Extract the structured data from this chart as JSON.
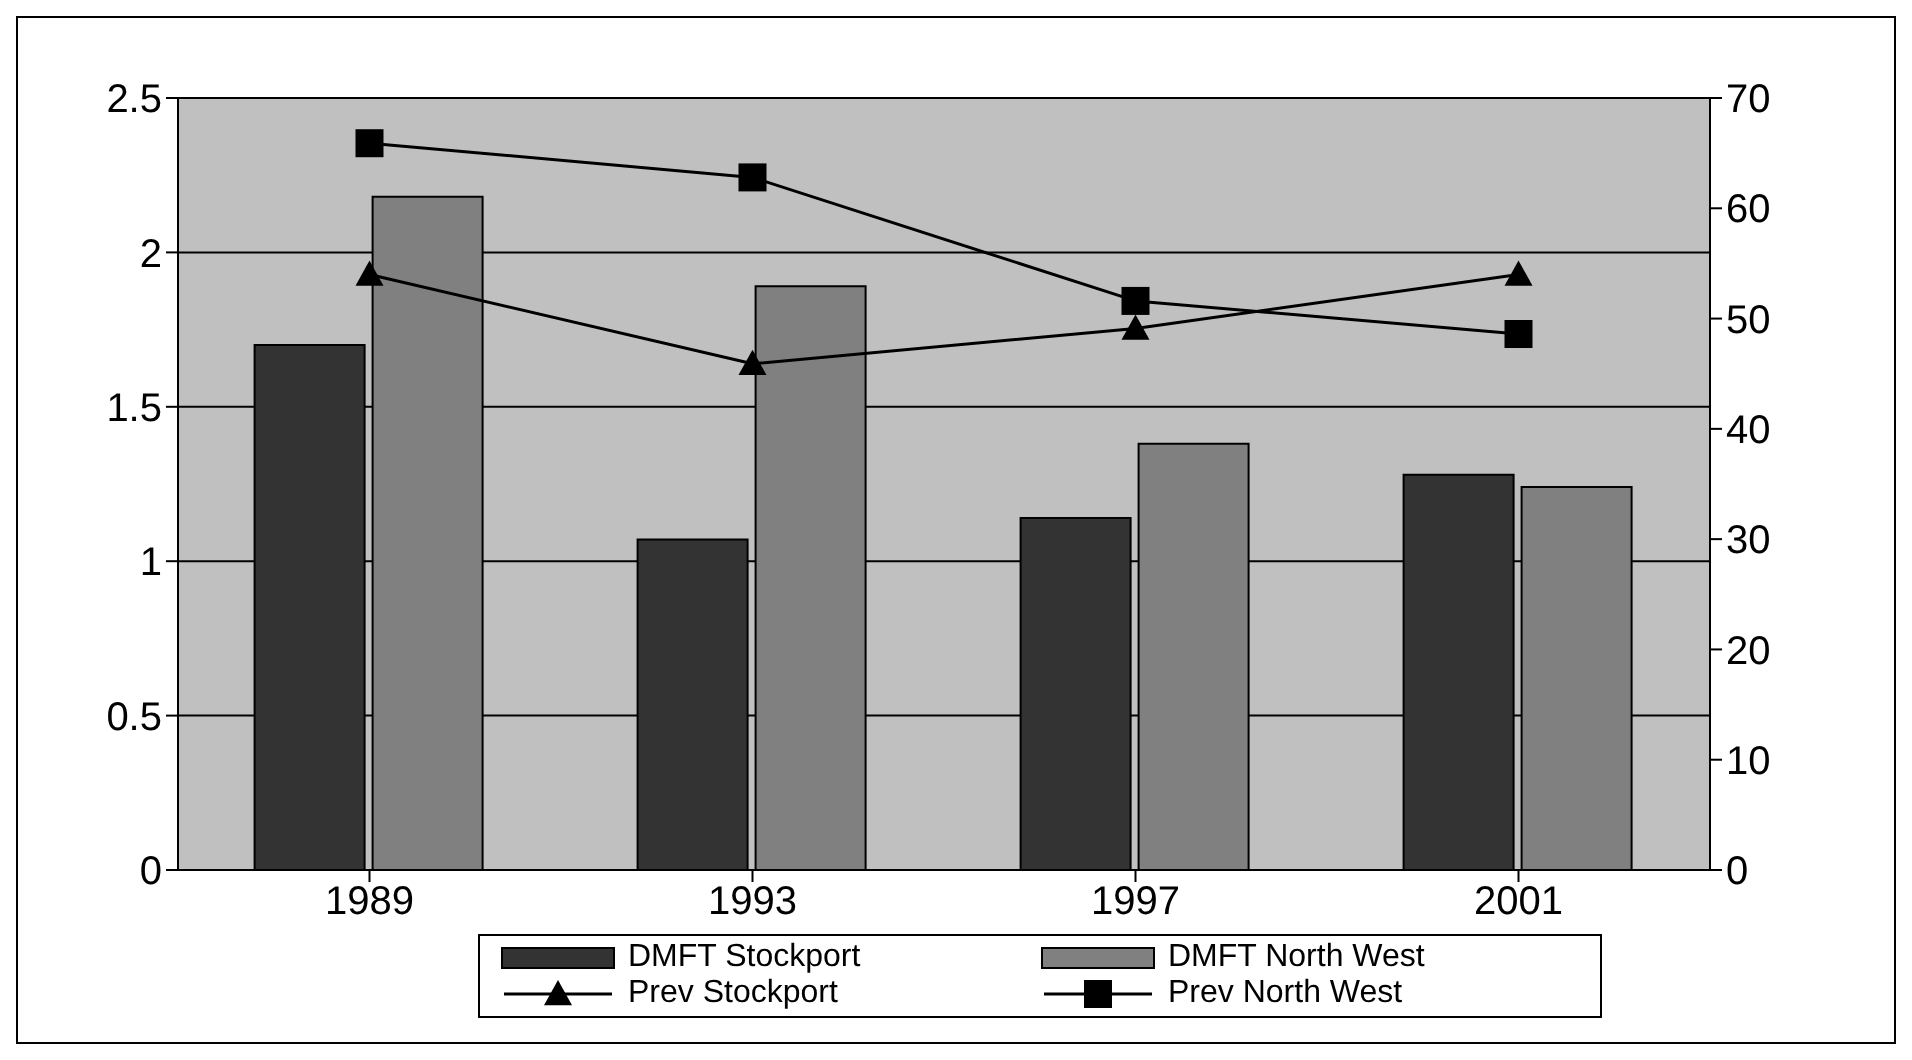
{
  "chart_data": {
    "type": "bar",
    "categories": [
      "1989",
      "1993",
      "1997",
      "2001"
    ],
    "series": [
      {
        "name": "DMFT Stockport",
        "color": "#333333",
        "values": [
          1.7,
          1.07,
          1.14,
          1.28
        ]
      },
      {
        "name": "DMFT North West",
        "color": "#808080",
        "values": [
          2.18,
          1.89,
          1.38,
          1.24
        ]
      },
      {
        "name": "Prev Stockport",
        "type": "line",
        "axis": "y2",
        "color": "#000000",
        "marker": "triangle",
        "values": [
          54,
          45.9,
          49.1,
          54
        ]
      },
      {
        "name": "Prev North West",
        "type": "line",
        "axis": "y2",
        "color": "#000000",
        "marker": "square",
        "values": [
          65.9,
          62.8,
          51.6,
          48.6
        ]
      }
    ],
    "ylim": [
      0,
      2.5
    ],
    "yticks": [
      0,
      0.5,
      1,
      1.5,
      2,
      2.5
    ],
    "y2lim": [
      0,
      70
    ],
    "y2ticks": [
      0,
      10,
      20,
      30,
      40,
      50,
      60,
      70
    ],
    "grid": "y",
    "legend": "bottom"
  }
}
